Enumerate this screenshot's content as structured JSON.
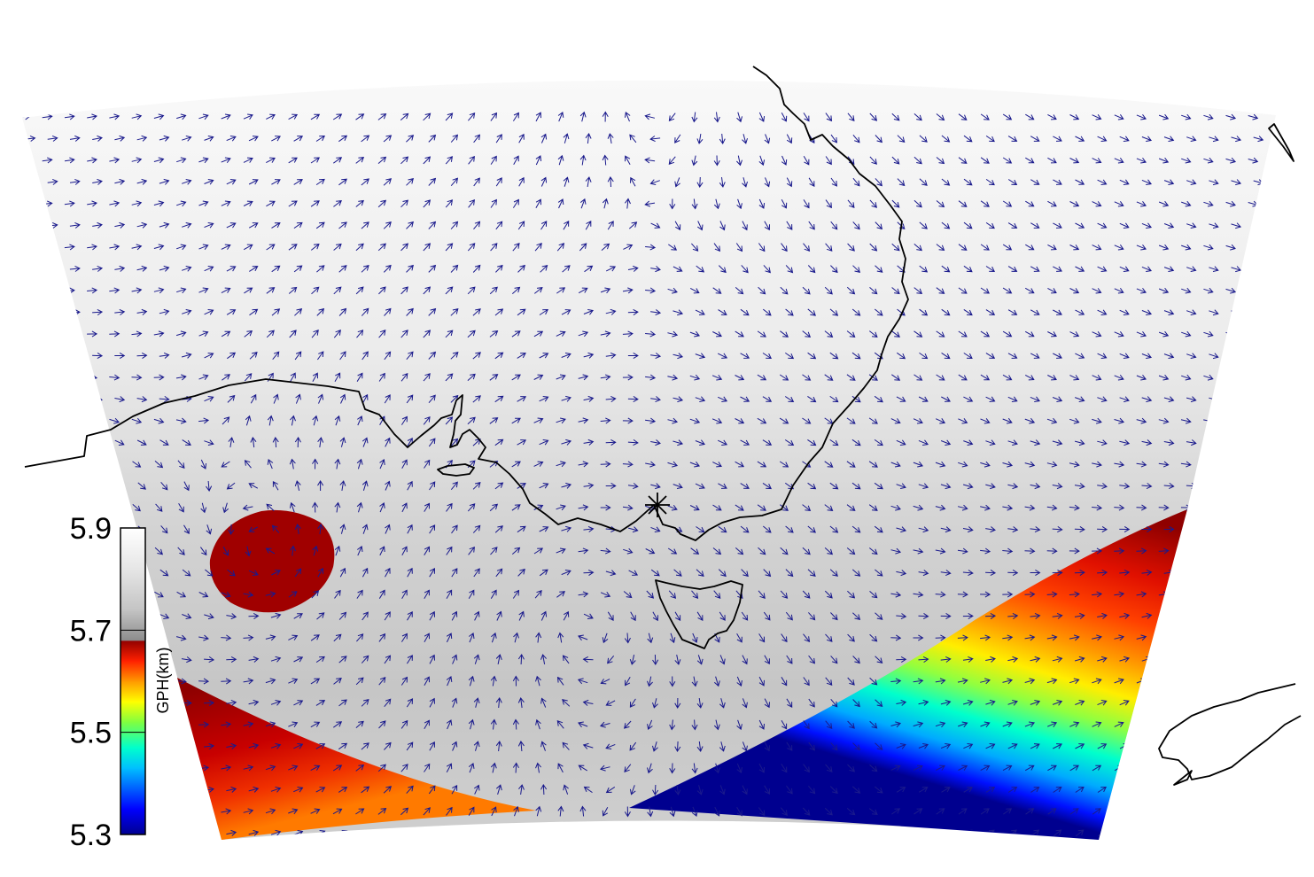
{
  "colorbar": {
    "title": "GPH(km)",
    "ticks": [
      "5.9",
      "5.7",
      "5.5",
      "5.3"
    ],
    "range": [
      5.3,
      5.9
    ],
    "stops": [
      {
        "v": 5.3,
        "color": "#00008f"
      },
      {
        "v": 5.35,
        "color": "#0000ff"
      },
      {
        "v": 5.43,
        "color": "#00bfff"
      },
      {
        "v": 5.47,
        "color": "#00ffcc"
      },
      {
        "v": 5.52,
        "color": "#80ff40"
      },
      {
        "v": 5.56,
        "color": "#ffff00"
      },
      {
        "v": 5.6,
        "color": "#ff9900"
      },
      {
        "v": 5.64,
        "color": "#ff2000"
      },
      {
        "v": 5.68,
        "color": "#8f0000"
      },
      {
        "v": 5.68,
        "color": "#8c8c8c"
      },
      {
        "v": 5.74,
        "color": "#c4c4c4"
      },
      {
        "v": 5.82,
        "color": "#e6e6e6"
      },
      {
        "v": 5.9,
        "color": "#ffffff"
      }
    ]
  },
  "colors": {
    "arrow": "#1a1a8c",
    "coastline": "#000000",
    "marker": "#000000"
  },
  "marker": {
    "symbol": "asterisk",
    "label": ""
  }
}
